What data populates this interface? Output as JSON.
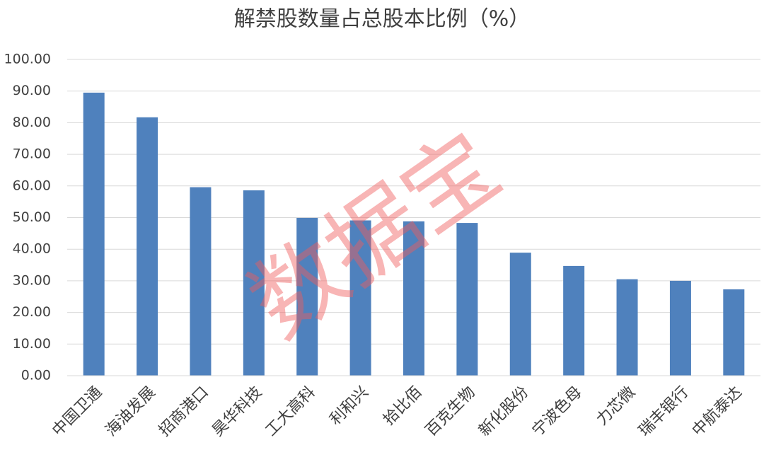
{
  "chart_data": {
    "type": "bar",
    "title": "解禁股数量占总股本比例（%）",
    "watermark": "数据宝",
    "categories": [
      "中国卫通",
      "海油发展",
      "招商港口",
      "昊华科技",
      "工大高科",
      "利和兴",
      "拾比佰",
      "百克生物",
      "新化股份",
      "宁波色母",
      "力芯微",
      "瑞丰银行",
      "中航泰达"
    ],
    "values": [
      89.5,
      81.7,
      59.6,
      58.6,
      49.9,
      49.1,
      48.8,
      48.3,
      38.9,
      34.7,
      30.5,
      30.0,
      27.3
    ],
    "color": "#4f81bd",
    "ylim": [
      0,
      100
    ],
    "yticks": [
      {
        "value": 0,
        "label": "0.00"
      },
      {
        "value": 10,
        "label": "10.00"
      },
      {
        "value": 20,
        "label": "20.00"
      },
      {
        "value": 30,
        "label": "30.00"
      },
      {
        "value": 40,
        "label": "40.00"
      },
      {
        "value": 50,
        "label": "50.00"
      },
      {
        "value": 60,
        "label": "60.00"
      },
      {
        "value": 70,
        "label": "70.00"
      },
      {
        "value": 80,
        "label": "80.00"
      },
      {
        "value": 90,
        "label": "90.00"
      },
      {
        "value": 100,
        "label": "100.00"
      }
    ],
    "grid": true
  }
}
